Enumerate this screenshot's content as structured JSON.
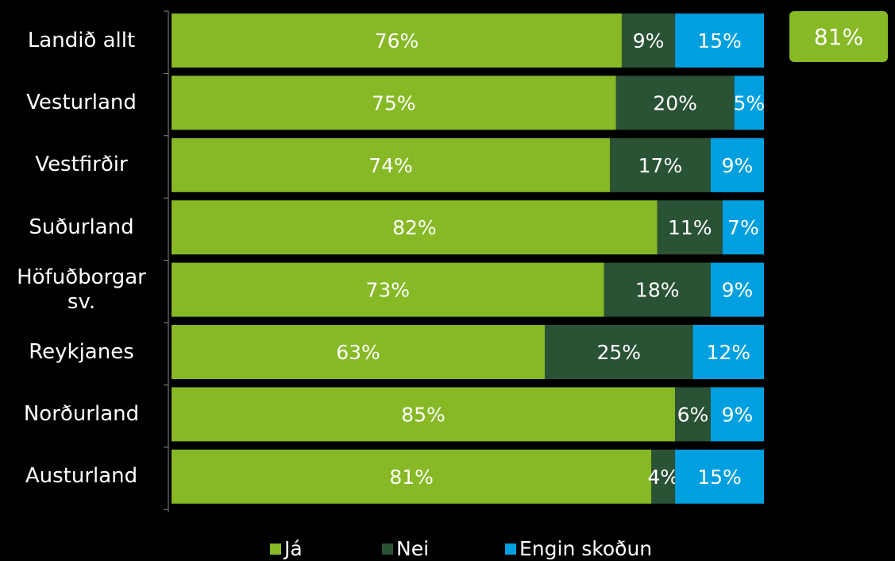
{
  "chart_data": {
    "type": "bar",
    "orientation": "horizontal",
    "stacked": true,
    "categories": [
      "Landið allt",
      "Vesturland",
      "Vestfirðir",
      "Suðurland",
      "Höfuðborgar sv.",
      "Reykjanes",
      "Norðurland",
      "Austurland"
    ],
    "category_lines": [
      [
        "Landið allt"
      ],
      [
        "Vesturland"
      ],
      [
        "Vestfirðir"
      ],
      [
        "Suðurland"
      ],
      [
        "Höfuðborgar",
        "sv."
      ],
      [
        "Reykjanes"
      ],
      [
        "Norðurland"
      ],
      [
        "Austurland"
      ]
    ],
    "series": [
      {
        "name": "Já",
        "color": "#86b925",
        "values": [
          76,
          75,
          74,
          82,
          73,
          63,
          85,
          81
        ],
        "labels": [
          "76%",
          "75%",
          "74%",
          "82%",
          "73%",
          "63%",
          "85%",
          "81%"
        ]
      },
      {
        "name": "Nei",
        "color": "#2a5235",
        "values": [
          9,
          20,
          17,
          11,
          18,
          25,
          6,
          4
        ],
        "labels": [
          "9%",
          "20%",
          "17%",
          "11%",
          "18%",
          "25%",
          "6%",
          "4%"
        ]
      },
      {
        "name": "Engin skoðun",
        "color": "#00a0e0",
        "values": [
          15,
          5,
          9,
          7,
          9,
          12,
          9,
          15
        ],
        "labels": [
          "15%",
          "5%",
          "9%",
          "7%",
          "9%",
          "12%",
          "9%",
          "15%"
        ]
      }
    ],
    "xlim": [
      0,
      100
    ],
    "legend_position": "bottom",
    "grid": false,
    "callout": "81%"
  }
}
